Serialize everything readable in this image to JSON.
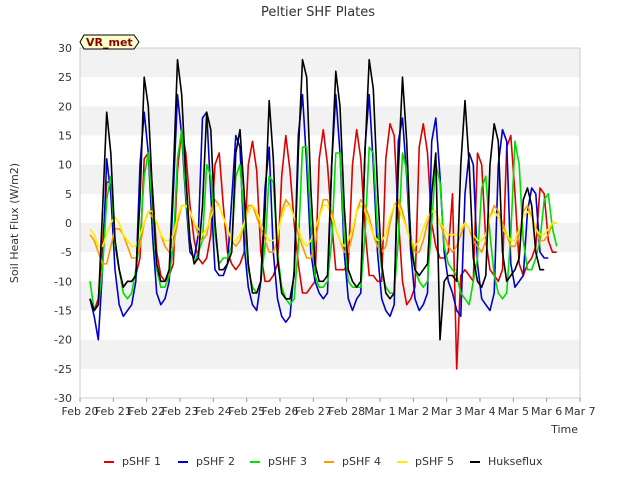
{
  "chart_data": {
    "type": "line",
    "title": "Peltier SHF Plates",
    "xlabel": "Time",
    "ylabel": "Soil Heat Flux (W/m2)",
    "ylim": [
      -30,
      30
    ],
    "yticks": [
      -30,
      -25,
      -20,
      -15,
      -10,
      -5,
      0,
      5,
      10,
      15,
      20,
      25,
      30
    ],
    "xlim": [
      0,
      15
    ],
    "xtick_labels": [
      "Feb 20",
      "Feb 21",
      "Feb 22",
      "Feb 23",
      "Feb 24",
      "Feb 25",
      "Feb 26",
      "Feb 27",
      "Feb 28",
      "Mar 1",
      "Mar 2",
      "Mar 3",
      "Mar 4",
      "Mar 5",
      "Mar 6",
      "Mar 7"
    ],
    "grid": "horizontal bands",
    "legend_position": "bottom",
    "annotation": "VR_met",
    "x_start_day": 0.3,
    "x_step_days": 0.125,
    "series": [
      {
        "name": "pSHF 1",
        "color": "#dd0000",
        "values": [
          -13,
          -15,
          -13,
          -4,
          7,
          7,
          -3,
          -8,
          -11,
          -10,
          -10,
          -9,
          -6,
          11,
          12,
          6,
          -5,
          -9,
          -10,
          -9,
          -7,
          9,
          16,
          12,
          3,
          -3,
          -6,
          -7,
          -6,
          -2,
          10,
          12,
          3,
          -5,
          -7,
          -8,
          -7,
          -5,
          10,
          14,
          9,
          -5,
          -10,
          -10,
          -9,
          -7,
          8,
          15,
          9,
          0,
          -7,
          -12,
          -12,
          -11,
          -10,
          11,
          16,
          10,
          0,
          -8,
          -8,
          -8,
          -7,
          10,
          16,
          11,
          -1,
          -9,
          -9,
          -10,
          -10,
          11,
          17,
          15,
          1,
          -10,
          -14,
          -13,
          -11,
          13,
          17,
          12,
          0,
          -4,
          -6,
          -6,
          -5,
          5,
          -25,
          -9,
          -8,
          -9,
          -10,
          12,
          10,
          -3,
          -8,
          -9,
          -10,
          -8,
          13,
          15,
          5,
          -7,
          -9,
          -7,
          -6,
          -4,
          6,
          5,
          -3,
          -5,
          -5
        ]
      },
      {
        "name": "pSHF 2",
        "color": "#0000cc",
        "values": [
          -13,
          -16,
          -20,
          -8,
          11,
          5,
          -8,
          -14,
          -16,
          -15,
          -14,
          -10,
          10,
          19,
          12,
          -2,
          -12,
          -14,
          -13,
          -10,
          5,
          22,
          15,
          4,
          -5,
          -6,
          -2,
          18,
          19,
          5,
          -8,
          -9,
          -9,
          -7,
          4,
          15,
          13,
          -4,
          -11,
          -14,
          -15,
          -10,
          6,
          13,
          -5,
          -13,
          -16,
          -17,
          -16,
          -8,
          15,
          22,
          10,
          -5,
          -10,
          -12,
          -13,
          -12,
          10,
          22,
          12,
          -5,
          -13,
          -15,
          -13,
          -12,
          13,
          22,
          10,
          -5,
          -13,
          -15,
          -16,
          -14,
          14,
          18,
          8,
          -5,
          -13,
          -15,
          -14,
          -12,
          14,
          18,
          8,
          -5,
          -10,
          -12,
          -15,
          -16,
          5,
          12,
          10,
          -7,
          -13,
          -14,
          -15,
          -12,
          10,
          16,
          14,
          -7,
          -11,
          -10,
          -9,
          2,
          6,
          5,
          -5,
          -6,
          -6
        ]
      },
      {
        "name": "pSHF 3",
        "color": "#00dd00",
        "values": [
          -10,
          -15,
          -14,
          -8,
          4,
          8,
          -4,
          -8,
          -12,
          -13,
          -12,
          -8,
          -3,
          8,
          12,
          2,
          -8,
          -11,
          -11,
          -9,
          -4,
          11,
          16,
          5,
          -3,
          -7,
          -5,
          -3,
          10,
          8,
          -2,
          -7,
          -6,
          -6,
          -4,
          8,
          10,
          1,
          -8,
          -11,
          -12,
          -10,
          -4,
          8,
          7,
          -5,
          -11,
          -13,
          -14,
          -13,
          -4,
          13,
          13,
          0,
          -9,
          -11,
          -11,
          -10,
          -3,
          12,
          12,
          -2,
          -10,
          -11,
          -11,
          -11,
          -2,
          13,
          12,
          -1,
          -8,
          -11,
          -12,
          -12,
          -3,
          12,
          9,
          -2,
          -8,
          -10,
          -11,
          -10,
          0,
          10,
          7,
          -4,
          -7,
          -8,
          -9,
          -12,
          -13,
          -14,
          -10,
          -6,
          6,
          8,
          -2,
          -9,
          -12,
          -13,
          -12,
          -2,
          14,
          10,
          -3,
          -8,
          -8,
          -6,
          -3,
          4,
          5,
          -1,
          -4
        ]
      },
      {
        "name": "pSHF 4",
        "color": "#ff9900",
        "values": [
          -2,
          -3,
          -5,
          -7,
          -7,
          -4,
          -1,
          -1,
          -2,
          -4,
          -6,
          -6,
          -4,
          0,
          2,
          1,
          0,
          -2,
          -4,
          -5,
          -4,
          0,
          3,
          3,
          2,
          0,
          -2,
          -3,
          -2,
          2,
          4,
          3,
          1,
          -1,
          -3,
          -4,
          -3,
          0,
          3,
          3,
          1,
          -1,
          -3,
          -5,
          -5,
          -3,
          2,
          4,
          3,
          1,
          -2,
          -4,
          -6,
          -6,
          -4,
          1,
          4,
          4,
          2,
          -1,
          -3,
          -5,
          -5,
          -2,
          2,
          4,
          3,
          1,
          -2,
          -4,
          -5,
          -4,
          0,
          3,
          4,
          2,
          -1,
          -3,
          -5,
          -5,
          -3,
          0,
          2,
          2,
          0,
          -2,
          -4,
          -5,
          -4,
          -2,
          0,
          -1,
          -3,
          -4,
          -5,
          -3,
          1,
          3,
          2,
          0,
          -2,
          -4,
          -4,
          -2,
          2,
          3,
          1,
          -1,
          -3,
          -3,
          -2,
          0,
          0
        ]
      },
      {
        "name": "pSHF 5",
        "color": "#ffee00",
        "values": [
          -1,
          -2,
          -4,
          -4,
          -2,
          0,
          1,
          0,
          -2,
          -3,
          -4,
          -4,
          -2,
          0,
          2,
          2,
          0,
          -2,
          -3,
          -3,
          -2,
          1,
          3,
          3,
          2,
          0,
          -1,
          -2,
          -1,
          1,
          3,
          3,
          1,
          -1,
          -3,
          -3,
          -2,
          0,
          2,
          3,
          2,
          0,
          -2,
          -3,
          -3,
          -2,
          1,
          3,
          3,
          1,
          -1,
          -3,
          -4,
          -3,
          -1,
          1,
          3,
          3,
          1,
          -1,
          -3,
          -4,
          -3,
          -1,
          2,
          3,
          2,
          0,
          -2,
          -3,
          -3,
          -2,
          1,
          3,
          3,
          1,
          -1,
          -3,
          -4,
          -3,
          -1,
          1,
          2,
          2,
          0,
          -1,
          -2,
          -2,
          -2,
          -1,
          0,
          -1,
          -2,
          -3,
          -3,
          -2,
          1,
          2,
          1,
          -1,
          -2,
          -3,
          -3,
          -1,
          1,
          2,
          1,
          -1,
          -2,
          -2,
          -1,
          0,
          0
        ]
      },
      {
        "name": "Hukseflux",
        "color": "#000000",
        "values": [
          -13,
          -15,
          -14,
          2,
          19,
          12,
          -3,
          -8,
          -11,
          -10,
          -10,
          -9,
          4,
          25,
          20,
          5,
          -7,
          -10,
          -10,
          -8,
          8,
          28,
          22,
          8,
          -3,
          -7,
          -6,
          3,
          19,
          16,
          0,
          -8,
          -8,
          -7,
          -5,
          12,
          16,
          5,
          -7,
          -12,
          -12,
          -10,
          2,
          21,
          11,
          -6,
          -12,
          -13,
          -13,
          -9,
          12,
          28,
          25,
          6,
          -7,
          -10,
          -10,
          -9,
          10,
          26,
          20,
          3,
          -8,
          -10,
          -11,
          -10,
          12,
          28,
          23,
          6,
          -7,
          -12,
          -13,
          -12,
          9,
          25,
          14,
          -4,
          -8,
          -9,
          -8,
          -7,
          5,
          12,
          -20,
          -10,
          -9,
          -9,
          -10,
          10,
          21,
          10,
          -6,
          -10,
          -11,
          -9,
          10,
          17,
          14,
          -5,
          -10,
          -9,
          -8,
          -6,
          4,
          6,
          3,
          -5,
          -8,
          -8
        ]
      }
    ]
  }
}
